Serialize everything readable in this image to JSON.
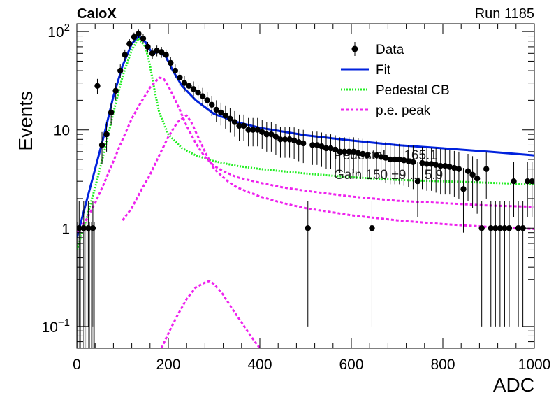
{
  "header": {
    "experiment": "CaloX",
    "run": "Run 1185"
  },
  "chart_data": {
    "type": "line",
    "xlabel": "ADC",
    "ylabel": "Events",
    "xlim": [
      0,
      1000
    ],
    "ylim": [
      0.06,
      120
    ],
    "y_scale": "log",
    "grid": false,
    "legend_placement": "top-right",
    "x_ticks": [
      {
        "v": 0,
        "label": "0"
      },
      {
        "v": 200,
        "label": "200"
      },
      {
        "v": 400,
        "label": "400"
      },
      {
        "v": 600,
        "label": "600"
      },
      {
        "v": 800,
        "label": "800"
      },
      {
        "v": 1000,
        "label": "1000"
      }
    ],
    "y_ticks": [
      {
        "v": 0.1,
        "base": "10",
        "exp": "−1"
      },
      {
        "v": 1,
        "base": "1",
        "exp": ""
      },
      {
        "v": 10,
        "base": "10",
        "exp": ""
      },
      {
        "v": 100,
        "base": "10",
        "exp": "2"
      }
    ],
    "legend": [
      {
        "label": "Data",
        "style": "marker"
      },
      {
        "label": "Fit",
        "style": "line",
        "color": "#0022dd"
      },
      {
        "label": "Pedestal CB",
        "style": "dotted",
        "color": "#22ee22"
      },
      {
        "label": "p.e. peak",
        "style": "dashed",
        "color": "#ee22ee"
      }
    ],
    "overlay_text": [
      "Pedestal ... 165.1",
      "Gain 150 ±9 ... 5.9"
    ],
    "series": [
      {
        "name": "Data",
        "style": "points",
        "color": "#000000",
        "x": [
          5,
          15,
          25,
          35,
          45,
          55,
          65,
          75,
          85,
          95,
          105,
          115,
          125,
          135,
          145,
          155,
          165,
          175,
          185,
          195,
          205,
          215,
          225,
          235,
          245,
          255,
          265,
          275,
          285,
          295,
          305,
          315,
          325,
          335,
          345,
          355,
          365,
          375,
          385,
          395,
          405,
          415,
          425,
          435,
          445,
          455,
          465,
          475,
          485,
          495,
          505,
          515,
          525,
          535,
          545,
          555,
          565,
          575,
          585,
          595,
          605,
          615,
          625,
          635,
          645,
          655,
          665,
          675,
          685,
          695,
          705,
          715,
          725,
          735,
          745,
          755,
          765,
          775,
          785,
          795,
          805,
          815,
          825,
          835,
          845,
          855,
          865,
          875,
          885,
          895,
          905,
          915,
          925,
          935,
          945,
          955,
          965,
          975,
          985,
          995
        ],
        "y": [
          1,
          1,
          1,
          1,
          28,
          7,
          9,
          15,
          25,
          40,
          58,
          75,
          88,
          95,
          85,
          70,
          60,
          64,
          62,
          58,
          48,
          40,
          34,
          30,
          28,
          26,
          24,
          22,
          20,
          18,
          16,
          15,
          14,
          13,
          12,
          11,
          11,
          10,
          10,
          10,
          9.5,
          9,
          9,
          8.5,
          8,
          8,
          8,
          7.8,
          7.5,
          7.3,
          1,
          7,
          7,
          6.8,
          6.5,
          6.5,
          6.3,
          6,
          6,
          6,
          6,
          5.8,
          5.7,
          5.5,
          1,
          5.5,
          5.3,
          5.2,
          5,
          5,
          5,
          4.9,
          4.8,
          4.7,
          3,
          4.6,
          4.5,
          4.5,
          4.4,
          4.3,
          4.3,
          4.2,
          4.1,
          4,
          2.5,
          3.8,
          3.5,
          3.2,
          1,
          4,
          1,
          1,
          1,
          1,
          1,
          3,
          1,
          1,
          3,
          3
        ],
        "yerr": [
          0.9,
          0.9,
          0.9,
          0.9,
          5,
          2.5,
          3,
          3.8,
          5,
          6.3,
          7.6,
          8.6,
          9.4,
          9.7,
          9.2,
          8.4,
          7.7,
          8,
          7.9,
          7.6,
          6.9,
          6.3,
          5.8,
          5.5,
          5.3,
          5.1,
          4.9,
          4.7,
          4.5,
          4.2,
          4,
          3.9,
          3.7,
          3.6,
          3.5,
          3.3,
          3.3,
          3.2,
          3.2,
          3.2,
          3.1,
          3,
          3,
          2.9,
          2.8,
          2.8,
          2.8,
          2.8,
          2.7,
          2.7,
          0.9,
          2.6,
          2.6,
          2.6,
          2.5,
          2.5,
          2.5,
          2.4,
          2.4,
          2.4,
          2.4,
          2.4,
          2.4,
          2.3,
          0.9,
          2.3,
          2.3,
          2.3,
          2.2,
          2.2,
          2.2,
          2.2,
          2.2,
          2.2,
          1.7,
          2.1,
          2.1,
          2.1,
          2.1,
          2.1,
          2.1,
          2,
          2,
          2,
          1.6,
          1.9,
          1.9,
          1.8,
          0.9,
          2,
          0.9,
          0.9,
          0.9,
          0.9,
          0.9,
          1.7,
          0.9,
          0.9,
          1.7,
          1.7
        ]
      },
      {
        "name": "Fit",
        "style": "solid",
        "color": "#0022dd",
        "x": [
          0,
          20,
          40,
          60,
          80,
          100,
          120,
          135,
          150,
          165,
          180,
          195,
          210,
          230,
          260,
          300,
          350,
          400,
          500,
          600,
          700,
          800,
          900,
          1000
        ],
        "y": [
          0.8,
          1.8,
          4,
          9,
          22,
          45,
          75,
          90,
          78,
          60,
          62,
          55,
          40,
          28,
          20,
          14.5,
          12,
          10.5,
          8.8,
          7.8,
          7,
          6.5,
          6,
          5.5
        ]
      },
      {
        "name": "Pedestal CB",
        "style": "dotted",
        "color": "#22ee22",
        "x": [
          0,
          20,
          40,
          60,
          80,
          100,
          120,
          135,
          150,
          160,
          170,
          180,
          200,
          230,
          260,
          300,
          350,
          400,
          500,
          600,
          700,
          800,
          900,
          1000
        ],
        "y": [
          0.6,
          1.2,
          2.6,
          6,
          15,
          35,
          65,
          85,
          70,
          45,
          25,
          15,
          9,
          6.5,
          5.5,
          4.8,
          4.3,
          4,
          3.6,
          3.3,
          3.1,
          3,
          2.9,
          2.8
        ]
      },
      {
        "name": "p.e. peak 1",
        "style": "dashed",
        "color": "#ee22ee",
        "x": [
          0,
          20,
          40,
          60,
          80,
          100,
          120,
          140,
          160,
          180,
          190,
          200,
          220,
          240,
          260,
          280,
          300,
          320,
          350,
          400,
          450,
          500,
          600,
          700,
          800,
          900,
          1000
        ],
        "y": [
          0.9,
          1.2,
          1.8,
          2.9,
          4.8,
          8,
          13,
          19,
          27,
          34,
          33,
          28,
          18,
          11,
          7.3,
          5.3,
          4.3,
          3.8,
          3.3,
          2.9,
          2.6,
          2.4,
          2.1,
          1.9,
          1.8,
          1.7,
          1.65
        ]
      },
      {
        "name": "p.e. peak 2",
        "style": "dashed",
        "color": "#ee22ee",
        "x": [
          100,
          120,
          140,
          160,
          180,
          200,
          220,
          240,
          250,
          260,
          280,
          300,
          330,
          350,
          400,
          450,
          500,
          600,
          700,
          800,
          900,
          1000
        ],
        "y": [
          1.2,
          1.6,
          2.4,
          3.5,
          5.5,
          8.5,
          12,
          14,
          12,
          9.5,
          6,
          4,
          3,
          2.6,
          2.1,
          1.8,
          1.6,
          1.35,
          1.2,
          1.1,
          1.03,
          0.98
        ]
      },
      {
        "name": "p.e. peak 3",
        "style": "dashed",
        "color": "#ee22ee",
        "x": [
          185,
          200,
          220,
          240,
          260,
          280,
          290,
          300,
          320,
          340,
          360,
          380,
          400
        ],
        "y": [
          0.06,
          0.085,
          0.13,
          0.19,
          0.25,
          0.28,
          0.29,
          0.27,
          0.21,
          0.15,
          0.11,
          0.08,
          0.06
        ]
      }
    ]
  }
}
